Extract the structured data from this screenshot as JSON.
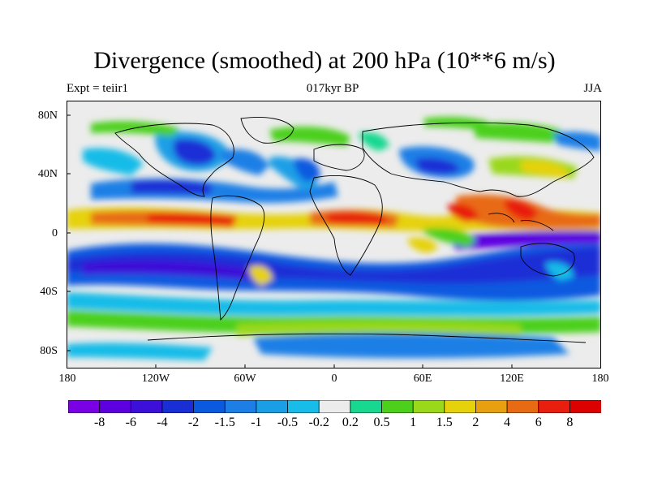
{
  "title": "Divergence (smoothed) at 200 hPa (10**6 m/s)",
  "subtitle_left": "Expt = teiir1",
  "subtitle_center": "017kyr BP",
  "subtitle_right": "JJA",
  "lat_labels": [
    "80N",
    "40N",
    "0",
    "40S",
    "80S"
  ],
  "lon_labels": [
    "180",
    "120W",
    "60W",
    "0",
    "60E",
    "120E",
    "180"
  ],
  "colorbar": {
    "labels": [
      "-8",
      "-6",
      "-4",
      "-2",
      "-1.5",
      "-1",
      "-0.5",
      "-0.2",
      "0.2",
      "0.5",
      "1",
      "1.5",
      "2",
      "4",
      "6",
      "8"
    ],
    "colors": [
      "#7a00e6",
      "#5d00e0",
      "#3c10d8",
      "#1a2ed6",
      "#0a5ae0",
      "#1d7fe6",
      "#1a9fe6",
      "#18bce8",
      "#ececec",
      "#18d890",
      "#4cd01c",
      "#9ad81a",
      "#e6d20a",
      "#e8a010",
      "#e86a12",
      "#e81e0e",
      "#dd0000"
    ]
  },
  "chart_data": {
    "type": "heatmap",
    "title": "Divergence (smoothed) at 200 hPa (10**6 m/s)",
    "x_ticks": [
      "180",
      "120W",
      "60W",
      "0",
      "60E",
      "120E",
      "180"
    ],
    "y_ticks": [
      "80N",
      "40N",
      "0",
      "40S",
      "80S"
    ],
    "xlim": [
      -180,
      180
    ],
    "ylim": [
      -90,
      90
    ],
    "levels": [
      -8,
      -6,
      -4,
      -2,
      -1.5,
      -1,
      -0.5,
      -0.2,
      0.2,
      0.5,
      1,
      1.5,
      2,
      4,
      6,
      8
    ],
    "features": [
      {
        "lon": -90,
        "lat": 8,
        "value": 8
      },
      {
        "lon": -150,
        "lat": 8,
        "value": 5
      },
      {
        "lon": 20,
        "lat": 10,
        "value": 6
      },
      {
        "lon": 95,
        "lat": 15,
        "value": 6
      },
      {
        "lon": 130,
        "lat": 10,
        "value": 6
      },
      {
        "lon": 165,
        "lat": 2,
        "value": 4
      },
      {
        "lon": -120,
        "lat": -20,
        "value": -4
      },
      {
        "lon": 0,
        "lat": -12,
        "value": -3
      },
      {
        "lon": 130,
        "lat": -2,
        "value": -8
      },
      {
        "lon": -100,
        "lat": 58,
        "value": -2
      },
      {
        "lon": 60,
        "lat": 45,
        "value": -1.5
      },
      {
        "lon": 0,
        "lat": -72,
        "value": -1
      }
    ]
  }
}
